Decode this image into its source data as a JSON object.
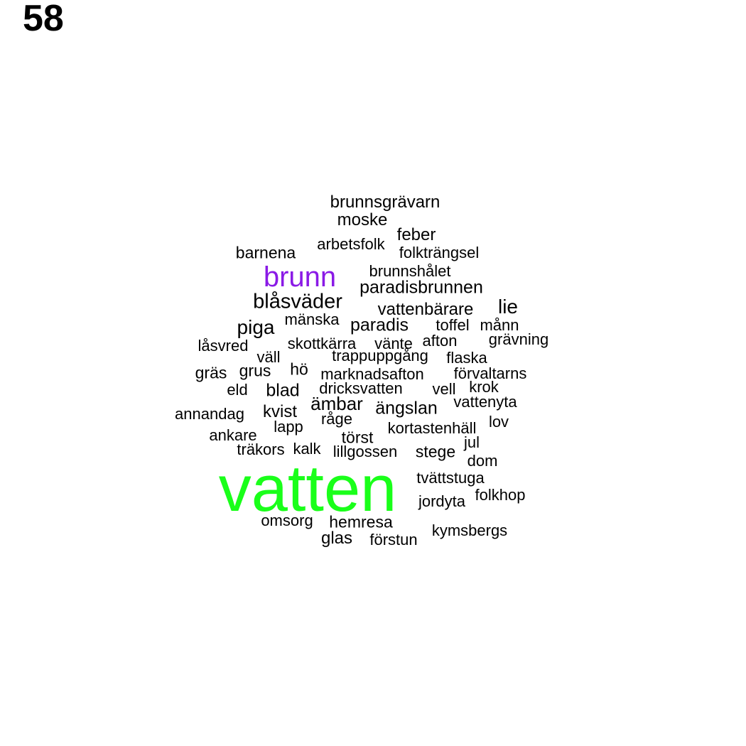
{
  "page_number": "58",
  "colors": {
    "default": "#000000",
    "brunn": "#8a1ae6",
    "vatten": "#1aff1a"
  },
  "words": [
    "vatten",
    "brunn",
    "blåsväder",
    "piga",
    "lie",
    "paradisbrunnen",
    "vattenbärare",
    "paradis",
    "ämbar",
    "ängslan",
    "blad",
    "kvist",
    "brunnsgrävarn",
    "moske",
    "feber",
    "barnena",
    "arbetsfolk",
    "folkträngsel",
    "brunnshålet",
    "mänska",
    "toffel",
    "månn",
    "grävning",
    "låsvred",
    "skottkärra",
    "vänte",
    "afton",
    "väll",
    "trappuppgång",
    "flaska",
    "gräs",
    "grus",
    "hö",
    "marknadsafton",
    "förvaltarns",
    "eld",
    "dricksvatten",
    "vell",
    "krok",
    "annandag",
    "vattenyta",
    "lapp",
    "råge",
    "ankare",
    "törst",
    "kortastenhäll",
    "lov",
    "träkors",
    "kalk",
    "lillgossen",
    "stege",
    "jul",
    "dom",
    "tvättstuga",
    "jordyta",
    "folkhop",
    "omsorg",
    "hemresa",
    "glas",
    "förstun",
    "kymsbergs"
  ]
}
